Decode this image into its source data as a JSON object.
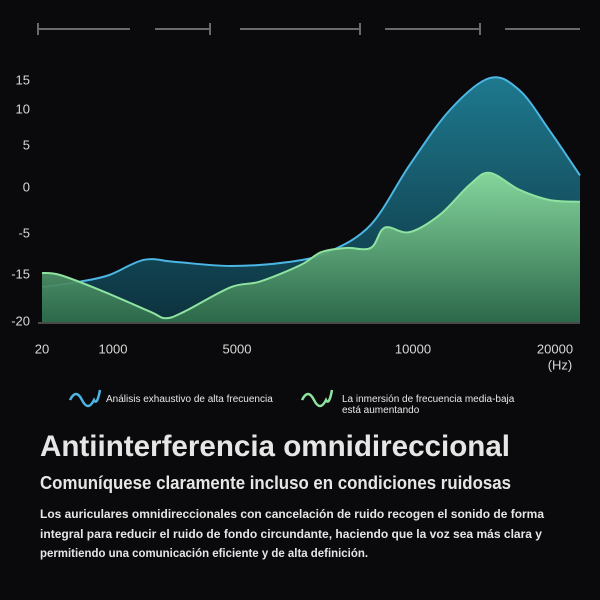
{
  "chart_data": {
    "type": "area",
    "x_label": "(Hz)",
    "xticks": [
      20,
      1000,
      5000,
      10000,
      20000
    ],
    "xlim": [
      20,
      21760
    ],
    "yticks": [
      -20,
      -15,
      -5,
      0,
      5,
      10,
      15
    ],
    "ylim": [
      -20,
      16
    ],
    "grid": false,
    "series": [
      {
        "name": "Análisis exhaustivo de alta frecuencia",
        "color": "#4cb6e4",
        "fill": "#1b6b80",
        "x": [
          20,
          550,
          950,
          2000,
          3000,
          4800,
          6500,
          7600,
          8800,
          9900,
          12600,
          15400,
          17500,
          19600,
          21760
        ],
        "values": [
          -16.3,
          -15.7,
          -15,
          -11.3,
          -11.8,
          -12.8,
          -11.8,
          -9.4,
          -4,
          2.7,
          10,
          15.5,
          13.4,
          7.2,
          1.5
        ]
      },
      {
        "name": "La inmersión de frecuencia media-baja está aumentando",
        "color": "#8fe3a0",
        "fill": "#5fb87c",
        "x": [
          20,
          270,
          820,
          2200,
          2700,
          3300,
          4800,
          5650,
          6800,
          7400,
          8100,
          8800,
          9200,
          9900,
          11900,
          14000,
          15400,
          17500,
          19600,
          21760
        ],
        "values": [
          -14.5,
          -15,
          -16.6,
          -18.9,
          -19.6,
          -18.9,
          -16.3,
          -15.7,
          -12.6,
          -9.4,
          -8.4,
          -8.4,
          -4.3,
          -4.8,
          -2.9,
          0.4,
          1.8,
          -0.2,
          -1.3,
          -1.5
        ]
      }
    ]
  },
  "headline": "Antiinterferencia omnidireccional",
  "subheadline": "Comuníquese claramente incluso en condiciones ruidosas",
  "body": [
    "Los auriculares omnidireccionales con cancelación de ruido recogen el sonido de forma",
    "integral para reducir el ruido de fondo circundante, haciendo que la voz sea más clara y",
    "permitiendo una comunicación eficiente y de alta definición."
  ]
}
